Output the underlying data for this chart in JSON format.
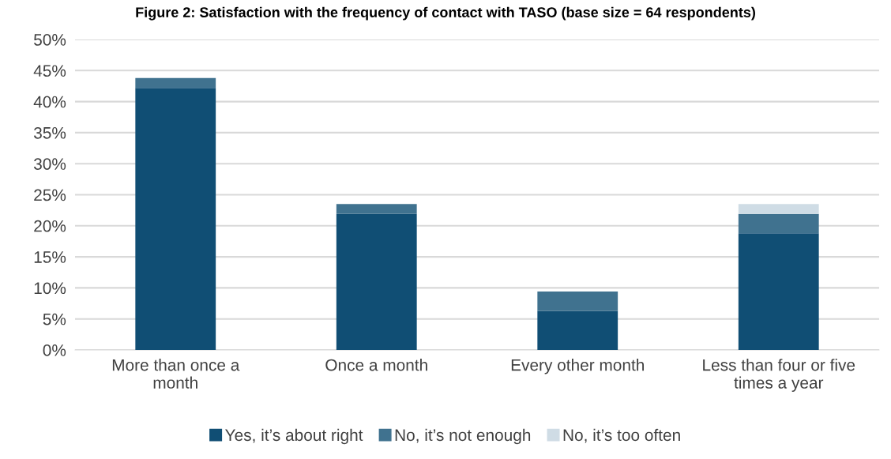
{
  "chart_data": {
    "type": "bar",
    "title": "Figure 2: Satisfaction with the frequency of contact with TASO (base size = 64 respondents)",
    "categories": [
      "More than once a\nmonth",
      "Once a month",
      "Every other month",
      "Less than four or five\ntimes a year"
    ],
    "stacked": true,
    "series": [
      {
        "name": "Yes, it’s about right",
        "color": "#104e74",
        "values": [
          42.2,
          21.9,
          6.3,
          18.8
        ]
      },
      {
        "name": "No, it’s not enough",
        "color": "#40728f",
        "values": [
          1.6,
          1.6,
          3.1,
          3.1
        ]
      },
      {
        "name": "No, it’s too often",
        "color": "#cfdce5",
        "values": [
          null,
          null,
          null,
          1.6
        ]
      }
    ],
    "ylim": [
      0,
      50
    ],
    "yticks": [
      {
        "value": 0,
        "label": "0%"
      },
      {
        "value": 5,
        "label": "5%"
      },
      {
        "value": 10,
        "label": "10%"
      },
      {
        "value": 15,
        "label": "15%"
      },
      {
        "value": 20,
        "label": "20%"
      },
      {
        "value": 25,
        "label": "25%"
      },
      {
        "value": 30,
        "label": "30%"
      },
      {
        "value": 35,
        "label": "35%"
      },
      {
        "value": 40,
        "label": "40%"
      },
      {
        "value": 45,
        "label": "45%"
      },
      {
        "value": 50,
        "label": "50%"
      }
    ],
    "grid": "y",
    "legend": "bottom"
  }
}
